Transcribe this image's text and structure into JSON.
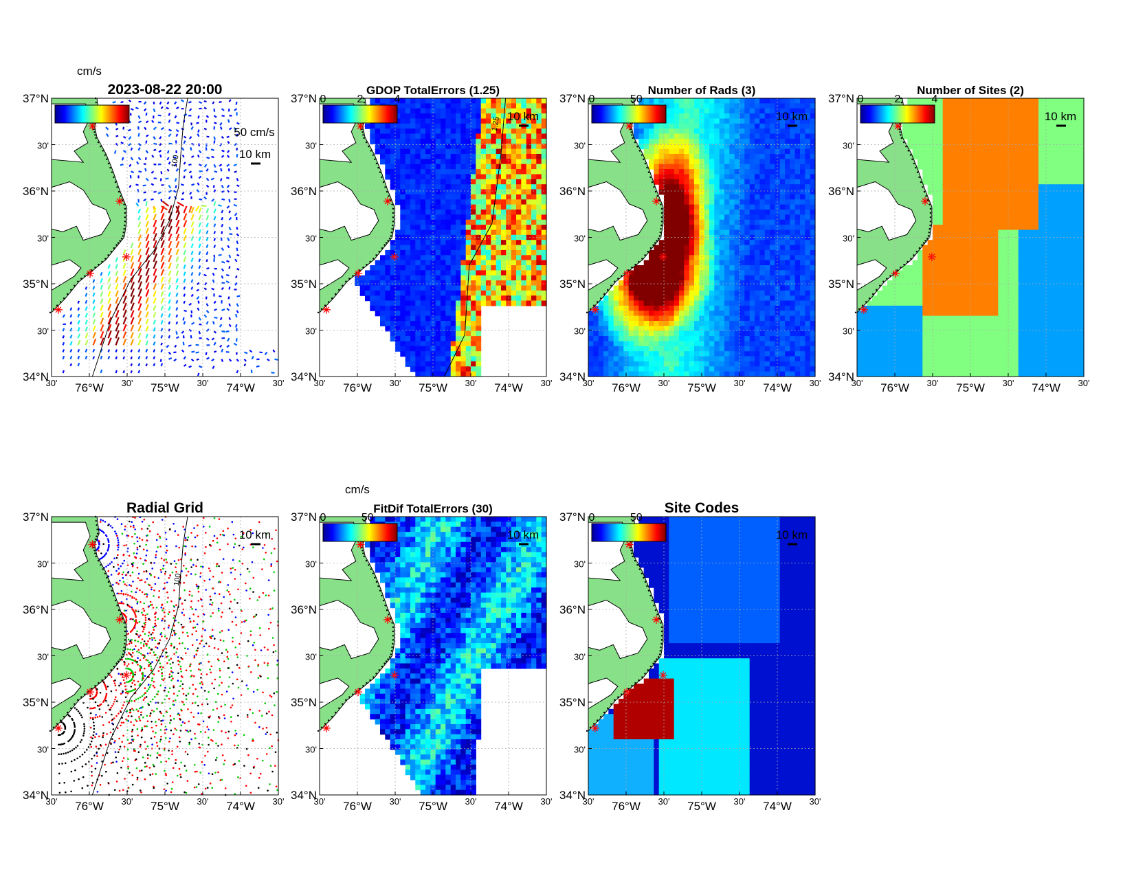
{
  "axes": {
    "lat_ticks": [
      "37°N",
      "30'",
      "36°N",
      "30'",
      "35°N",
      "30'",
      "34°N"
    ],
    "lon_ticks": [
      "30'",
      "76°W",
      "30'",
      "75°W",
      "30'",
      "74°W",
      "30'"
    ]
  },
  "scale_bar_label": "10 km",
  "panels": [
    {
      "id": "currents",
      "title": "2023-08-22 20:00",
      "colorbar_label": "cm/s",
      "colorbar_ticks": [],
      "vector_scale_label": "50 cm/s",
      "contour_labels": [
        "100",
        "100"
      ],
      "colormap": "jet"
    },
    {
      "id": "gdop",
      "title": "GDOP TotalErrors (1.25)",
      "colorbar_label": "",
      "colorbar_ticks": [
        "0",
        "2",
        "4"
      ],
      "contour_labels": [
        "1.25",
        "1.25",
        "1.25"
      ],
      "colormap": "jet"
    },
    {
      "id": "nrads",
      "title": "Number of Rads (3)",
      "colorbar_label": "",
      "colorbar_ticks": [
        "0",
        "50"
      ],
      "contour_labels": [
        "3"
      ],
      "colormap": "jet"
    },
    {
      "id": "nsites",
      "title": "Number of Sites (2)",
      "colorbar_label": "",
      "colorbar_ticks": [
        "0",
        "2",
        "4"
      ],
      "contour_labels": [
        "2",
        "2",
        "2",
        "2"
      ],
      "colormap": "jet"
    },
    {
      "id": "radgrid",
      "title": "Radial Grid",
      "colorbar_label": "",
      "colorbar_ticks": [],
      "contour_labels": [
        "100",
        "100"
      ],
      "site_colors": [
        "#0000ff",
        "#ff0000",
        "#00cc00",
        "#ff0000",
        "#000000"
      ]
    },
    {
      "id": "fitdif",
      "title": "FitDif TotalErrors (30)",
      "colorbar_label": "cm/s",
      "colorbar_ticks": [
        "0",
        "50"
      ],
      "contour_labels": [
        "30",
        "30",
        "30",
        "30"
      ],
      "colormap": "jet"
    },
    {
      "id": "sitecodes",
      "title": "Site Codes",
      "colorbar_label": "",
      "colorbar_ticks": [
        "0",
        "50"
      ],
      "contour_labels": [],
      "colormap": "jet"
    }
  ]
}
